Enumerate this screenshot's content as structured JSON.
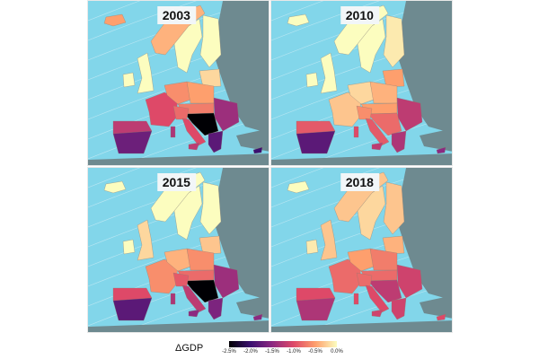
{
  "legend": {
    "label": "ΔGDP",
    "ticks": [
      "-2.5%",
      "-2.0%",
      "-1.5%",
      "-1.0%",
      "-0.5%",
      "0.0%"
    ],
    "colors": [
      "#000004",
      "#3b0f70",
      "#8c2981",
      "#de4968",
      "#fe9f6d",
      "#fcfdbf"
    ]
  },
  "colors": {
    "sea": "#82d6ea",
    "land_outside": "#6e8a90"
  },
  "panels": [
    {
      "year": "2003",
      "values": {
        "iceland": -0.5,
        "norway": -0.4,
        "sweden": 0,
        "finland": 0,
        "baltic": -0.2,
        "uk": 0,
        "ireland": 0,
        "france": -1.0,
        "germany": -0.6,
        "poland": -0.5,
        "austria_hungary": -0.7,
        "romania_bulgaria": -1.4,
        "balkans": -2.5,
        "greece": -1.8,
        "italy_north": -0.8,
        "italy_south": -1.0,
        "sicily": -1.2,
        "sardinia": -1.3,
        "iberia_north": -1.2,
        "iberia_south": -1.7,
        "cyprus": -2.0
      }
    },
    {
      "year": "2010",
      "values": {
        "iceland": 0,
        "norway": 0,
        "sweden": 0,
        "finland": -0.1,
        "baltic": -0.5,
        "uk": 0,
        "ireland": 0,
        "france": -0.3,
        "germany": -0.2,
        "poland": -0.4,
        "austria_hungary": -0.5,
        "romania_bulgaria": -1.2,
        "balkans": -0.8,
        "greece": -1.3,
        "italy_north": -0.6,
        "italy_south": -0.9,
        "sicily": -1.2,
        "sardinia": -1.0,
        "iberia_north": -0.9,
        "iberia_south": -1.8,
        "cyprus": -1.5
      }
    },
    {
      "year": "2015",
      "values": {
        "iceland": 0,
        "norway": 0,
        "sweden": 0,
        "finland": 0,
        "baltic": -0.3,
        "uk": -0.2,
        "ireland": 0,
        "france": -0.6,
        "germany": -0.4,
        "poland": -0.6,
        "austria_hungary": -0.8,
        "romania_bulgaria": -1.4,
        "balkans": -2.5,
        "greece": -1.6,
        "italy_north": -0.9,
        "italy_south": -1.2,
        "sicily": -1.5,
        "sardinia": -1.3,
        "iberia_north": -1.0,
        "iberia_south": -1.8,
        "cyprus": -1.5
      }
    },
    {
      "year": "2018",
      "values": {
        "iceland": 0,
        "norway": -0.3,
        "sweden": -0.2,
        "finland": -0.3,
        "baltic": -0.4,
        "uk": -0.3,
        "ireland": -0.1,
        "france": -0.8,
        "germany": -0.5,
        "poland": -0.7,
        "austria_hungary": -0.8,
        "romania_bulgaria": -1.1,
        "balkans": -1.2,
        "greece": -1.1,
        "italy_north": -0.8,
        "italy_south": -1.0,
        "sicily": -1.1,
        "sardinia": -1.0,
        "iberia_north": -1.0,
        "iberia_south": -1.3,
        "cyprus": -1.0
      }
    }
  ]
}
